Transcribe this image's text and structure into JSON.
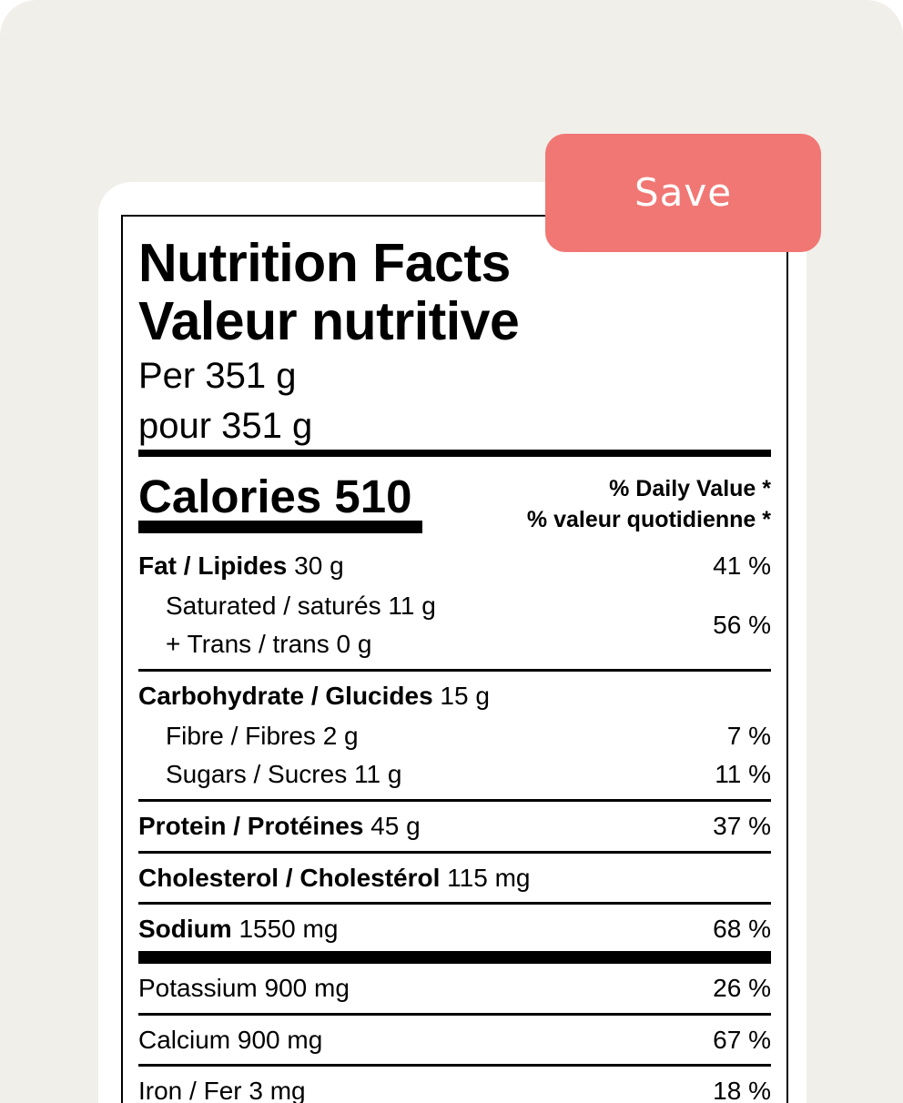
{
  "save_button": {
    "label": "Save"
  },
  "label": {
    "title_en": "Nutrition Facts",
    "title_fr": "Valeur nutritive",
    "serving_en": "Per 351 g",
    "serving_fr": "pour 351 g",
    "calories_text": "Calories 510",
    "daily_value_en": "% Daily Value *",
    "daily_value_fr": "% valeur quotidienne *",
    "rows": [
      {
        "bold": "Fat / Lipides",
        "value": " 30 g",
        "pct": "41 %"
      },
      {
        "bold": "",
        "value": "Saturated / saturés 11 g",
        "pct": "56 %"
      },
      {
        "bold": "",
        "value": "+ Trans / trans 0 g",
        "pct": ""
      },
      {
        "bold": "Carbohydrate / Glucides",
        "value": " 15 g",
        "pct": ""
      },
      {
        "bold": "",
        "value": "Fibre / Fibres 2 g",
        "pct": "7 %"
      },
      {
        "bold": "",
        "value": "Sugars / Sucres 11 g",
        "pct": "11 %"
      },
      {
        "bold": "Protein / Protéines",
        "value": " 45 g",
        "pct": "37 %"
      },
      {
        "bold": "Cholesterol / Cholestérol",
        "value": " 115 mg",
        "pct": ""
      },
      {
        "bold": "Sodium",
        "value": " 1550 mg",
        "pct": "68 %"
      },
      {
        "bold": "",
        "value": "Potassium 900 mg",
        "pct": "26 %"
      },
      {
        "bold": "",
        "value": "Calcium 900 mg",
        "pct": "67 %"
      },
      {
        "bold": "",
        "value": "Iron / Fer 3 mg",
        "pct": "18 %"
      }
    ]
  },
  "colors": {
    "background": "#f0efea",
    "card": "#ffffff",
    "save_button": "#f17774"
  }
}
